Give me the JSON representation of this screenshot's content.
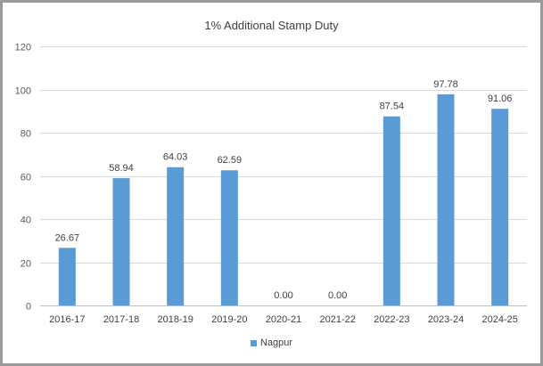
{
  "chart_data": {
    "type": "bar",
    "title": "1% Additional Stamp Duty",
    "categories": [
      "2016-17",
      "2017-18",
      "2018-19",
      "2019-20",
      "2020-21",
      "2021-22",
      "2022-23",
      "2023-24",
      "2024-25"
    ],
    "series": [
      {
        "name": "Nagpur",
        "values": [
          26.67,
          58.94,
          64.03,
          62.59,
          0.0,
          0.0,
          87.54,
          97.78,
          91.06
        ],
        "data_labels": [
          "26.67",
          "58.94",
          "64.03",
          "62.59",
          "0.00",
          "0.00",
          "87.54",
          "97.78",
          "91.06"
        ],
        "color": "#5b9bd5"
      }
    ],
    "yticks": [
      0,
      20,
      40,
      60,
      80,
      100,
      120
    ],
    "ylim": [
      0,
      120
    ],
    "grid": true,
    "legend_position": "bottom"
  }
}
